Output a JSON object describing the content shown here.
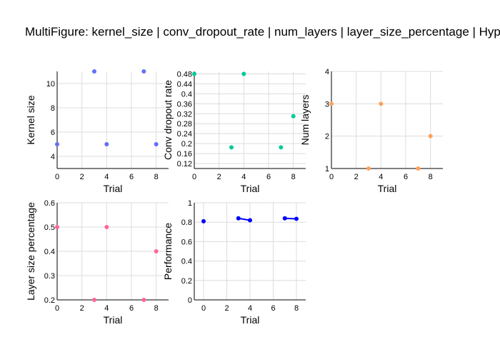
{
  "title": "MultiFigure: kernel_size | conv_dropout_rate | num_layers | layer_size_percentage | Hyp",
  "chart_data": [
    {
      "type": "scatter",
      "xlabel": "Trial",
      "ylabel": "Kernel size",
      "xlim": [
        0,
        9
      ],
      "ylim": [
        3,
        11
      ],
      "xticks": [
        0,
        2,
        4,
        6,
        8
      ],
      "yticks": [
        4,
        6,
        8,
        10
      ],
      "grid": true,
      "color": "#636efa",
      "x": [
        0,
        3,
        4,
        7,
        8
      ],
      "y": [
        5,
        11,
        5,
        11,
        5
      ]
    },
    {
      "type": "scatter",
      "xlabel": "Trial",
      "ylabel": "Conv dropout rate",
      "xlim": [
        0,
        9
      ],
      "ylim": [
        0.1,
        0.49
      ],
      "xticks": [
        0,
        2,
        4,
        6,
        8
      ],
      "yticks": [
        0.12,
        0.16,
        0.2,
        0.24,
        0.28,
        0.32,
        0.36,
        0.4,
        0.44,
        0.48
      ],
      "grid": true,
      "color": "#00cc96",
      "x": [
        0,
        3,
        4,
        7,
        8
      ],
      "y": [
        0.48,
        0.185,
        0.48,
        0.185,
        0.31
      ]
    },
    {
      "type": "scatter",
      "xlabel": "Trial",
      "ylabel": "Num layers",
      "xlim": [
        0,
        9
      ],
      "ylim": [
        1,
        4
      ],
      "xticks": [
        0,
        2,
        4,
        6,
        8
      ],
      "yticks": [
        1,
        2,
        3,
        4
      ],
      "grid": true,
      "color": "#ffa15a",
      "x": [
        0,
        3,
        4,
        7,
        8
      ],
      "y": [
        3,
        1,
        3,
        1,
        2
      ]
    },
    {
      "type": "scatter",
      "xlabel": "Trial",
      "ylabel": "Layer size percentage",
      "xlim": [
        0,
        9
      ],
      "ylim": [
        0.2,
        0.6
      ],
      "xticks": [
        0,
        2,
        4,
        6,
        8
      ],
      "yticks": [
        0.2,
        0.3,
        0.4,
        0.5,
        0.6
      ],
      "grid": true,
      "color": "#ff6692",
      "x": [
        0,
        3,
        4,
        7,
        8
      ],
      "y": [
        0.5,
        0.2,
        0.5,
        0.2,
        0.4
      ]
    },
    {
      "type": "line",
      "xlabel": "Trial",
      "ylabel": "Performance",
      "xlim": [
        -0.8,
        8.8
      ],
      "ylim": [
        0,
        1
      ],
      "xticks": [
        0,
        2,
        4,
        6,
        8
      ],
      "yticks": [
        0,
        0.2,
        0.4,
        0.6,
        0.8,
        1
      ],
      "grid": true,
      "color": "#0000ff",
      "x": [
        0,
        3,
        4,
        7,
        8
      ],
      "y": [
        0.81,
        0.84,
        0.82,
        0.84,
        0.835
      ],
      "segments": [
        [
          0
        ],
        [
          1,
          2
        ],
        [
          3,
          4
        ]
      ]
    }
  ]
}
